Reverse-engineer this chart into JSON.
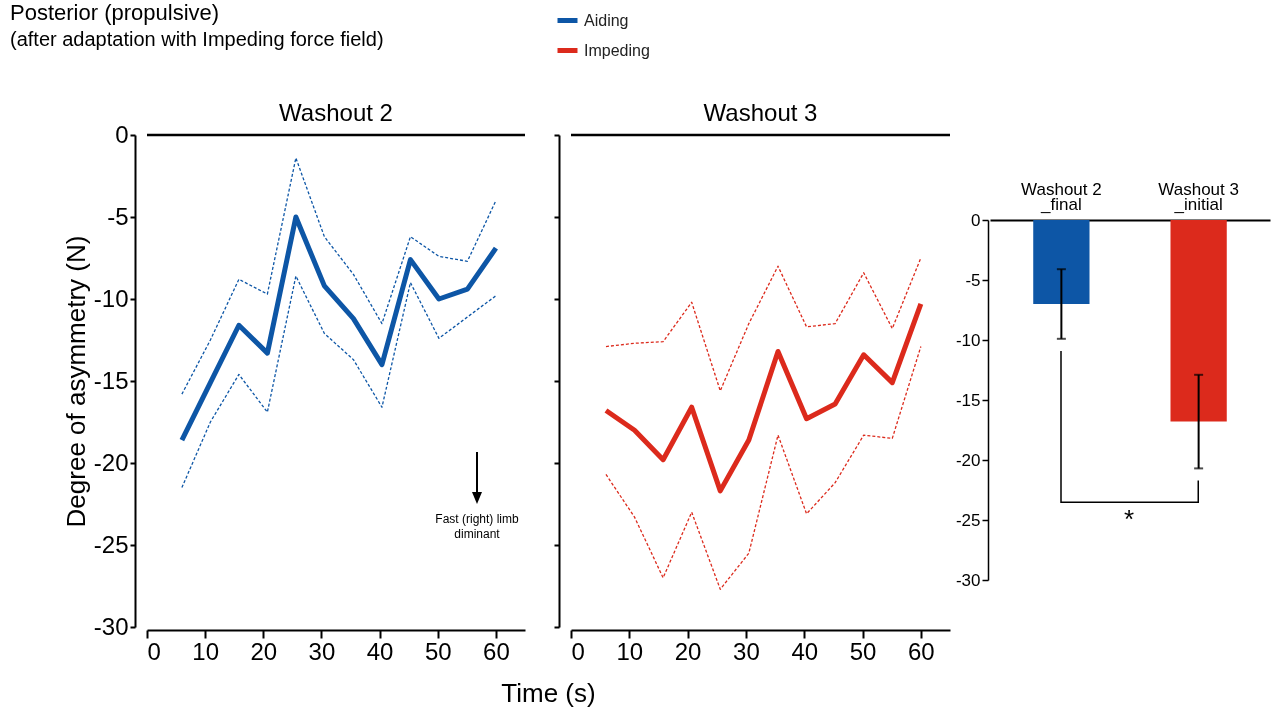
{
  "chart_data": [
    {
      "type": "line",
      "title": "Washout 2",
      "xlabel": "Time (s)",
      "ylabel": "Degree of asymmetry (N)",
      "x": [
        6.0,
        10.9,
        15.8,
        20.7,
        25.6,
        30.5,
        35.5,
        40.4,
        45.3,
        50.2,
        55.1,
        60.0
      ],
      "series": [
        {
          "name": "Aiding",
          "color": "#0d56a6",
          "values": [
            -18.6,
            -15.1,
            -11.6,
            -13.3,
            -5.0,
            -9.2,
            -11.2,
            -14.0,
            -7.6,
            -10.0,
            -9.4,
            -6.9
          ]
        },
        {
          "color": "#0d56a6",
          "line_style": "dashed",
          "values": [
            -21.5,
            -17.5,
            -14.6,
            -16.9,
            -8.6,
            -12.1,
            -13.7,
            -16.6,
            -9.0,
            -12.4,
            -11.1,
            -9.8
          ]
        },
        {
          "color": "#0d56a6",
          "line_style": "dashed",
          "values": [
            -15.8,
            -12.5,
            -8.8,
            -9.7,
            -1.4,
            -6.2,
            -8.5,
            -11.5,
            -6.2,
            -7.4,
            -7.7,
            -4.0
          ]
        }
      ],
      "xlim": [
        0,
        65
      ],
      "xticks": [
        0,
        10,
        20,
        30,
        40,
        50,
        60
      ],
      "ylim": [
        -30,
        0
      ],
      "yticks": [
        0,
        -5,
        -10,
        -15,
        -20,
        -25,
        -30
      ],
      "ref_lines": [
        {
          "axis": "y",
          "value": 0
        }
      ],
      "legend": "top",
      "annotations": [
        "Posterior (propulsive)",
        "(after adaptation with Impeding force field)",
        "Fast (right) limb diminant"
      ]
    },
    {
      "type": "line",
      "title": "Washout 3",
      "x": [
        6.0,
        10.9,
        15.8,
        20.7,
        25.6,
        30.5,
        35.5,
        40.4,
        45.3,
        50.2,
        55.1,
        60.0
      ],
      "series": [
        {
          "name": "Impeding",
          "color": "#dc2a1c",
          "values": [
            -16.8,
            -18.0,
            -19.8,
            -16.6,
            -21.7,
            -18.6,
            -13.2,
            -17.3,
            -16.4,
            -13.4,
            -15.1,
            -10.3
          ]
        },
        {
          "color": "#dc2a1c",
          "line_style": "dashed",
          "values": [
            -20.7,
            -23.3,
            -27.0,
            -23.0,
            -27.7,
            -25.5,
            -18.3,
            -23.1,
            -21.2,
            -18.3,
            -18.5,
            -12.9
          ]
        },
        {
          "color": "#dc2a1c",
          "line_style": "dashed",
          "values": [
            -12.9,
            -12.7,
            -12.6,
            -10.2,
            -15.6,
            -11.5,
            -8.0,
            -11.7,
            -11.5,
            -8.4,
            -11.8,
            -7.5
          ]
        }
      ],
      "xlim": [
        0,
        65
      ],
      "xticks": [
        0,
        10,
        20,
        30,
        40,
        50,
        60
      ],
      "ylim": [
        -30,
        0
      ],
      "yticks": [
        0,
        -5,
        -10,
        -15,
        -20,
        -25,
        -30
      ],
      "tick_labels": "x",
      "ref_lines": [
        {
          "axis": "y",
          "value": 0
        }
      ],
      "legend": "top"
    },
    {
      "type": "bar",
      "categories": [
        "Washout 2\n_final",
        "Washout 3\n_initial"
      ],
      "values": [
        -7.0,
        -16.8
      ],
      "colors": [
        "#0d56a6",
        "#dc2a1c"
      ],
      "errors": [
        2.9,
        3.9
      ],
      "ylim": [
        -30,
        0
      ],
      "yticks": [
        0,
        -5,
        -10,
        -15,
        -20,
        -25,
        -30
      ],
      "annotations": [
        "*"
      ]
    }
  ]
}
